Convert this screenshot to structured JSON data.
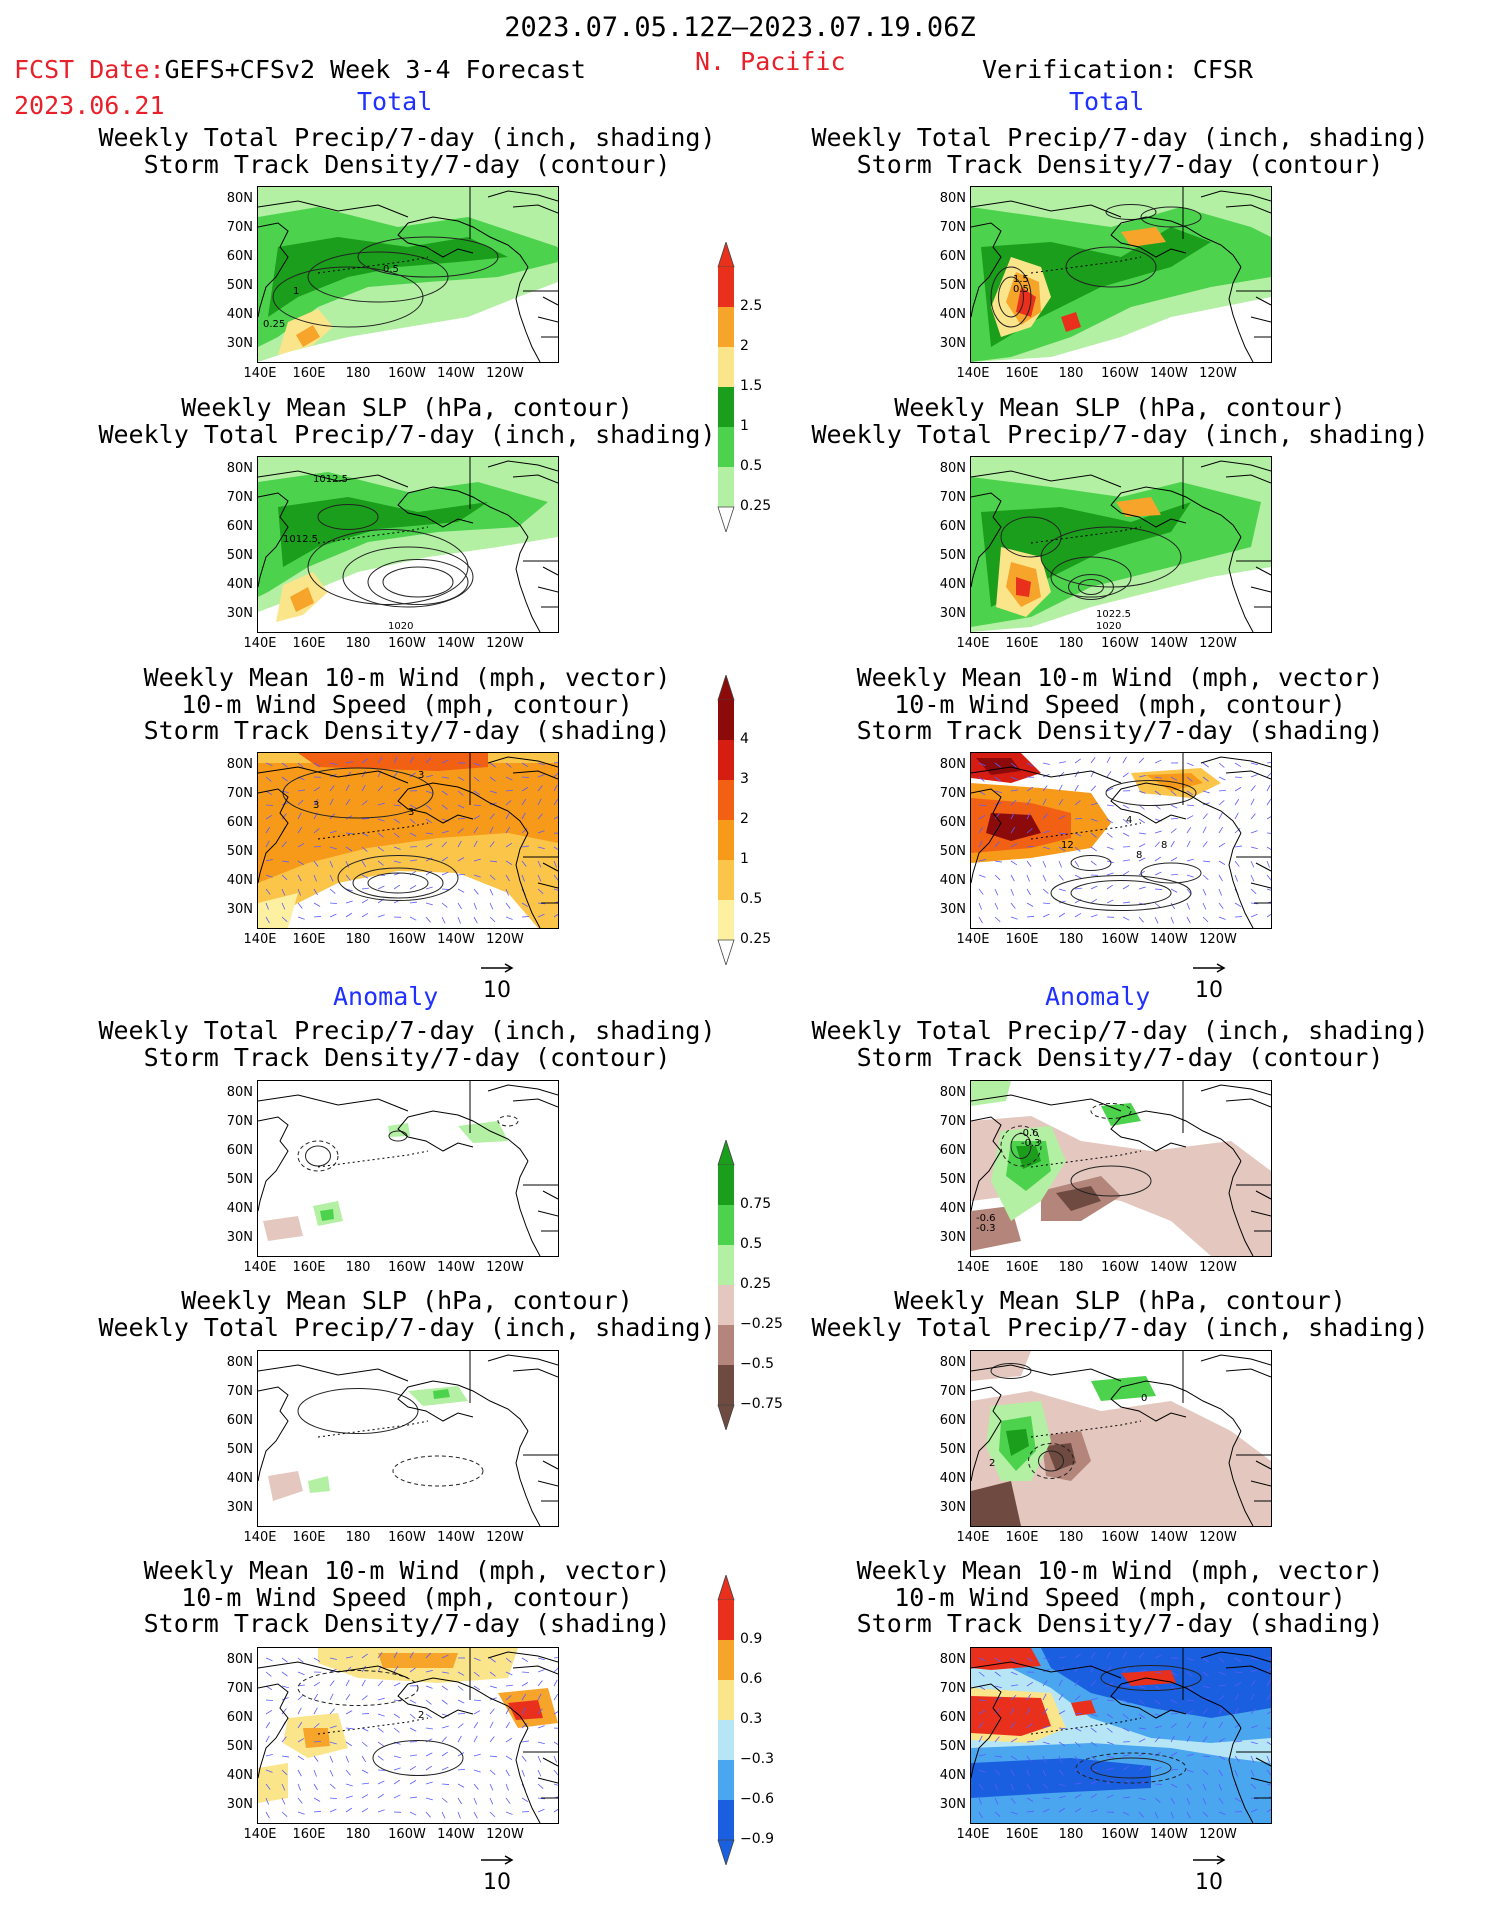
{
  "header": {
    "date_range": "2023.07.05.12Z–2023.07.19.06Z",
    "fcst_date_label": "FCST Date:",
    "fcst_model": "GEFS+CFSv2 Week 3-4 Forecast",
    "fcst_date": "2023.06.21",
    "region": "N. Pacific",
    "verification": "Verification: CFSR"
  },
  "sections": {
    "total": "Total",
    "anomaly": "Anomaly"
  },
  "panel_titles": {
    "precip_storm": [
      "Weekly Total Precip/7-day (inch, shading)",
      "Storm Track Density/7-day (contour)"
    ],
    "slp_precip": [
      "Weekly Mean SLP (hPa, contour)",
      "Weekly Total Precip/7-day (inch, shading)"
    ],
    "wind_storm": [
      "Weekly Mean 10-m Wind (mph, vector)",
      "10-m Wind Speed (mph, contour)",
      "Storm Track Density/7-day (shading)"
    ]
  },
  "axes": {
    "lat_labels": [
      "80N",
      "70N",
      "60N",
      "50N",
      "40N",
      "30N"
    ],
    "lon_labels": [
      "140E",
      "160E",
      "180",
      "160W",
      "140W",
      "120W"
    ]
  },
  "vector_reference": "10",
  "colorbars": {
    "precip_total": {
      "labels": [
        "2.5",
        "2",
        "1.5",
        "1",
        "0.5",
        "0.25"
      ],
      "colors": [
        "#e8301c",
        "#f6a42a",
        "#fbe58a",
        "#1b9e1b",
        "#4cd24c",
        "#b4f0a4"
      ]
    },
    "storm_total": {
      "labels": [
        "4",
        "3",
        "2",
        "1",
        "0.5",
        "0.25"
      ],
      "colors": [
        "#8c0a0a",
        "#d61d12",
        "#f26014",
        "#f79a1a",
        "#fbc54a",
        "#fdf0a0"
      ]
    },
    "precip_anom": {
      "labels": [
        "0.75",
        "0.5",
        "0.25",
        "−0.25",
        "−0.5",
        "−0.75"
      ],
      "colors": [
        "#1b9e1b",
        "#4cd24c",
        "#b4f0a4",
        "#e4c8bf",
        "#b4857a",
        "#6e4a40"
      ]
    },
    "storm_anom": {
      "labels": [
        "0.9",
        "0.6",
        "0.3",
        "−0.3",
        "−0.6",
        "−0.9"
      ],
      "colors": [
        "#e8301c",
        "#f6a42a",
        "#fbe58a",
        "#b6e6f6",
        "#4aa6ee",
        "#1a5fe0"
      ]
    }
  },
  "chart_data": [
    {
      "type": "heatmap",
      "name": "Forecast Total: Precip + Storm Track",
      "contour_labels": [
        "0.5",
        "1",
        "0.25"
      ]
    },
    {
      "type": "heatmap",
      "name": "Forecast Total: SLP + Precip",
      "contour_labels": [
        "1012.5",
        "1012.5",
        "1020"
      ]
    },
    {
      "type": "heatmap",
      "name": "Forecast Total: Wind + Storm Track",
      "contour_labels": [
        "3",
        "3",
        "3"
      ]
    },
    {
      "type": "heatmap",
      "name": "Verification Total: Precip + Storm Track",
      "contour_labels": [
        "1.5",
        "0.5"
      ]
    },
    {
      "type": "heatmap",
      "name": "Verification Total: SLP + Precip",
      "contour_labels": [
        "1022.5",
        "1020"
      ]
    },
    {
      "type": "heatmap",
      "name": "Verification Total: Wind + Storm Track",
      "contour_labels": [
        "4",
        "12",
        "8",
        "8"
      ]
    },
    {
      "type": "heatmap",
      "name": "Forecast Anomaly: Precip + Storm Track",
      "contour_labels": []
    },
    {
      "type": "heatmap",
      "name": "Forecast Anomaly: SLP + Precip",
      "contour_labels": []
    },
    {
      "type": "heatmap",
      "name": "Forecast Anomaly: Wind + Storm Track",
      "contour_labels": [
        "2"
      ]
    },
    {
      "type": "heatmap",
      "name": "Verification Anomaly: Precip + Storm Track",
      "contour_labels": [
        "-0.6",
        "-0.3",
        "-0.6",
        "-0.3"
      ]
    },
    {
      "type": "heatmap",
      "name": "Verification Anomaly: SLP + Precip",
      "contour_labels": [
        "0",
        "2"
      ]
    },
    {
      "type": "heatmap",
      "name": "Verification Anomaly: Wind + Storm Track",
      "contour_labels": []
    }
  ]
}
